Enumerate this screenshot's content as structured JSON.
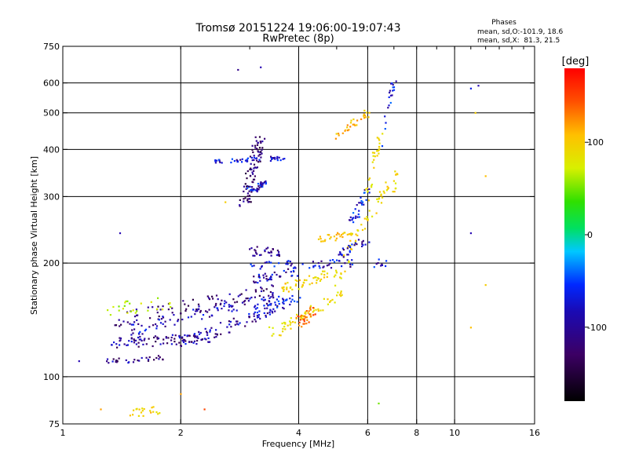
{
  "chart_data": {
    "type": "scatter",
    "title": "Tromsø 20151224 19:06:00-19:07:43",
    "subtitle": "RwPretec (8p)",
    "xlabel": "Frequency [MHz]",
    "ylabel": "Stationary phase Virtual Height [km]",
    "x_scale": "log",
    "y_scale": "log",
    "xlim": [
      1,
      16
    ],
    "ylim": [
      75,
      750
    ],
    "x_ticks": [
      1,
      2,
      4,
      6,
      8,
      10,
      16
    ],
    "x_tick_labels": [
      "1",
      "2",
      "4",
      "6",
      "8",
      "10",
      "16"
    ],
    "y_ticks": [
      75,
      100,
      200,
      300,
      400,
      500,
      600,
      750
    ],
    "y_tick_labels": [
      "75",
      "100",
      "200",
      "300",
      "400",
      "500",
      "600",
      "750"
    ],
    "grid": true,
    "grid_x": [
      2,
      4,
      6,
      8,
      10
    ],
    "grid_y": [
      100,
      200,
      300,
      400,
      500,
      600
    ],
    "phase_legend": {
      "title": "Phases",
      "line1": "mean, sd,O:-101.9, 18.6",
      "line2": "mean, sd,X:  81.3, 21.5"
    },
    "colorbar": {
      "label": "[deg]",
      "range": [
        -180,
        180
      ],
      "ticks": [
        100,
        0,
        -100
      ],
      "tick_labels": [
        "100",
        "0",
        "-100"
      ]
    },
    "traces": [
      {
        "x0": 1.3,
        "x1": 2.5,
        "y0": 122,
        "y1": 128,
        "phase": -120,
        "n": 90,
        "dx": 0.02,
        "dy": 4
      },
      {
        "x0": 2.0,
        "x1": 3.5,
        "y0": 122,
        "y1": 150,
        "phase": -115,
        "n": 70,
        "dx": 0.03,
        "dy": 5
      },
      {
        "x0": 1.5,
        "x1": 3.6,
        "y0": 133,
        "y1": 163,
        "phase": -110,
        "n": 90,
        "dx": 0.03,
        "dy": 5
      },
      {
        "x0": 1.3,
        "x1": 3.5,
        "y0": 140,
        "y1": 170,
        "phase": -125,
        "n": 80,
        "dx": 0.03,
        "dy": 6
      },
      {
        "x0": 3.0,
        "x1": 4.0,
        "y0": 148,
        "y1": 160,
        "phase": -100,
        "n": 40,
        "dx": 0.03,
        "dy": 5
      },
      {
        "x0": 3.0,
        "x1": 4.0,
        "y0": 180,
        "y1": 190,
        "phase": -110,
        "n": 40,
        "dx": 0.04,
        "dy": 5
      },
      {
        "x0": 3.0,
        "x1": 6.8,
        "y0": 198,
        "y1": 200,
        "phase": -105,
        "n": 60,
        "dx": 0.02,
        "dy": 5
      },
      {
        "x0": 3.0,
        "x1": 3.6,
        "y0": 215,
        "y1": 215,
        "phase": -120,
        "n": 30,
        "dx": 0.05,
        "dy": 6
      },
      {
        "x0": 2.9,
        "x1": 3.2,
        "y0": 280,
        "y1": 430,
        "phase": -130,
        "n": 80,
        "dx": 0.06,
        "dy": 10
      },
      {
        "x0": 3.0,
        "x1": 3.3,
        "y0": 310,
        "y1": 325,
        "phase": -105,
        "n": 40,
        "dx": 0.06,
        "dy": 5
      },
      {
        "x0": 2.4,
        "x1": 3.7,
        "y0": 370,
        "y1": 380,
        "phase": -105,
        "n": 50,
        "dx": 0.03,
        "dy": 5
      },
      {
        "x0": 5.0,
        "x1": 6.0,
        "y0": 430,
        "y1": 500,
        "phase": 110,
        "n": 30,
        "dx": 0.04,
        "dy": 10
      },
      {
        "x0": 3.4,
        "x1": 5.2,
        "y0": 130,
        "y1": 165,
        "phase": 90,
        "n": 60,
        "dx": 0.04,
        "dy": 5
      },
      {
        "x0": 4.0,
        "x1": 4.4,
        "y0": 140,
        "y1": 150,
        "phase": 140,
        "n": 30,
        "dx": 0.04,
        "dy": 5
      },
      {
        "x0": 3.6,
        "x1": 5.0,
        "y0": 170,
        "y1": 190,
        "phase": 95,
        "n": 50,
        "dx": 0.04,
        "dy": 6
      },
      {
        "x0": 5.0,
        "x1": 6.8,
        "y0": 180,
        "y1": 320,
        "phase": 90,
        "n": 50,
        "dx": 0.04,
        "dy": 8
      },
      {
        "x0": 4.5,
        "x1": 5.5,
        "y0": 230,
        "y1": 240,
        "phase": 100,
        "n": 30,
        "dx": 0.03,
        "dy": 5
      },
      {
        "x0": 5.0,
        "x1": 6.0,
        "y0": 210,
        "y1": 230,
        "phase": -110,
        "n": 30,
        "dx": 0.03,
        "dy": 6
      },
      {
        "x0": 5.5,
        "x1": 6.0,
        "y0": 260,
        "y1": 310,
        "phase": -100,
        "n": 30,
        "dx": 0.05,
        "dy": 8
      },
      {
        "x0": 6.0,
        "x1": 6.5,
        "y0": 300,
        "y1": 450,
        "phase": 90,
        "n": 30,
        "dx": 0.04,
        "dy": 10
      },
      {
        "x0": 7.0,
        "x1": 7.1,
        "y0": 300,
        "y1": 360,
        "phase": 90,
        "n": 10,
        "dx": 0.02,
        "dy": 8
      },
      {
        "x0": 1.5,
        "x1": 1.8,
        "y0": 80,
        "y1": 82,
        "phase": 100,
        "n": 20,
        "dx": 0.04,
        "dy": 2
      },
      {
        "x0": 6.5,
        "x1": 7.0,
        "y0": 410,
        "y1": 600,
        "phase": -100,
        "n": 20,
        "dx": 0.03,
        "dy": 10
      },
      {
        "x0": 1.3,
        "x1": 1.8,
        "y0": 110,
        "y1": 112,
        "phase": -120,
        "n": 30,
        "dx": 0.03,
        "dy": 2
      },
      {
        "x0": 1.3,
        "x1": 1.9,
        "y0": 150,
        "y1": 160,
        "phase": 60,
        "n": 25,
        "dx": 0.05,
        "dy": 8
      }
    ],
    "isolated_points": [
      {
        "x": 11,
        "y": 580,
        "phase": -100
      },
      {
        "x": 11.5,
        "y": 590,
        "phase": -110
      },
      {
        "x": 11.3,
        "y": 500,
        "phase": 100
      },
      {
        "x": 12,
        "y": 340,
        "phase": 110
      },
      {
        "x": 11,
        "y": 240,
        "phase": -110
      },
      {
        "x": 12,
        "y": 175,
        "phase": 100
      },
      {
        "x": 11,
        "y": 135,
        "phase": 110
      },
      {
        "x": 7.0,
        "y": 330,
        "phase": 95
      },
      {
        "x": 6.4,
        "y": 85,
        "phase": 40
      },
      {
        "x": 1.1,
        "y": 110,
        "phase": -110
      },
      {
        "x": 1.25,
        "y": 82,
        "phase": 120
      },
      {
        "x": 2.0,
        "y": 90,
        "phase": 120
      },
      {
        "x": 2.3,
        "y": 82,
        "phase": 150
      },
      {
        "x": 1.4,
        "y": 240,
        "phase": -110
      },
      {
        "x": 2.8,
        "y": 650,
        "phase": -120
      },
      {
        "x": 3.2,
        "y": 660,
        "phase": -110
      },
      {
        "x": 2.6,
        "y": 290,
        "phase": 100
      }
    ]
  }
}
